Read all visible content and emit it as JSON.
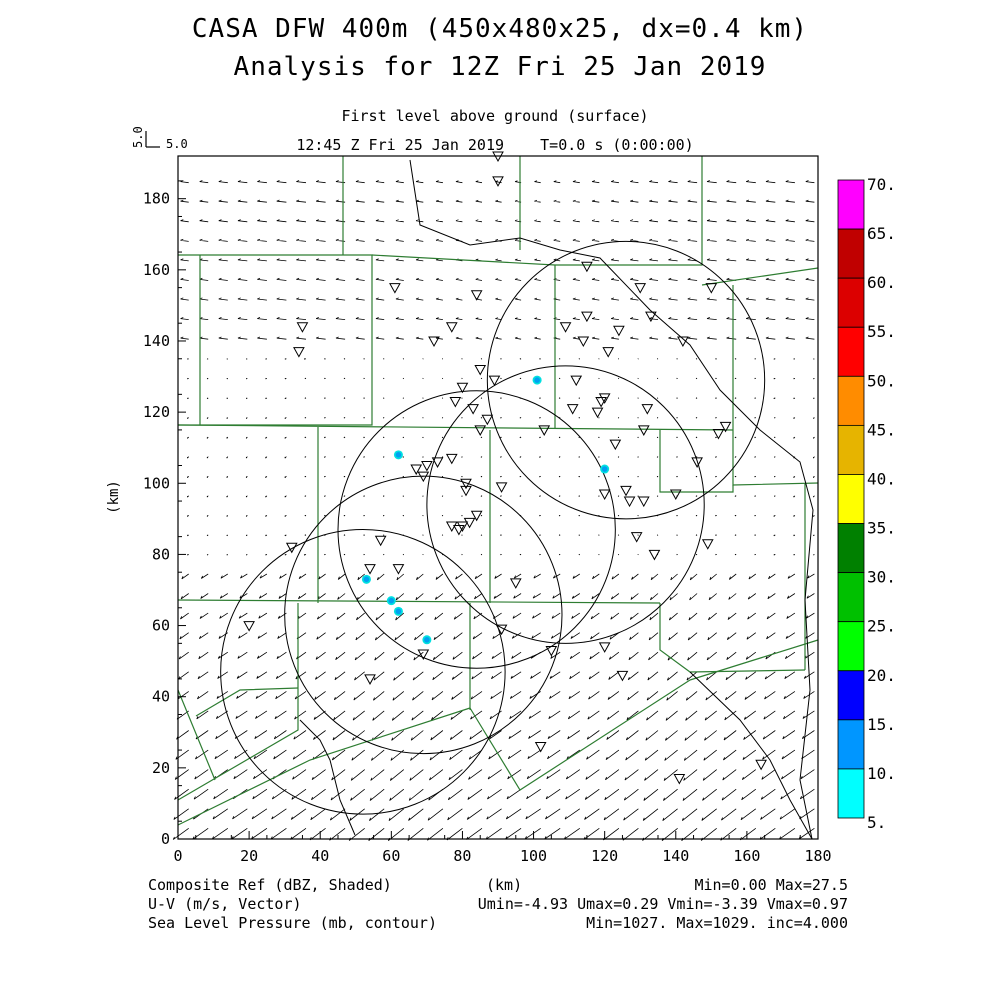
{
  "titles": {
    "line1": "CASA DFW 400m (450x480x25, dx=0.4 km)",
    "line2": "Analysis for 12Z Fri 25 Jan 2019",
    "level": "First level above ground (surface)",
    "time": "12:45 Z Fri 25 Jan 2019    T=0.0 s (0:00:00)"
  },
  "vector_key": {
    "x_label": "5.0",
    "y_label": "5.0"
  },
  "footer": {
    "field1": "Composite Ref (dBZ, Shaded)",
    "field2": "U-V (m/s, Vector)",
    "field3": "Sea Level Pressure (mb, contour)",
    "xunit": "(km)",
    "stats1": "Min=0.00 Max=27.5",
    "stats2": "Umin=-4.93 Umax=0.29 Vmin=-3.39 Vmax=0.97",
    "stats3": "Min=1027. Max=1029. inc=4.000"
  },
  "colors": {
    "boundary": "#2e7d32",
    "outline": "#000000",
    "echo_core": "#00a0f0",
    "echo_edge": "#00e0e0"
  },
  "chart_data": {
    "type": "map",
    "ylabel": "(km)",
    "xlim": [
      0,
      180
    ],
    "ylim": [
      0,
      192
    ],
    "xticks": [
      0,
      20,
      40,
      60,
      80,
      100,
      120,
      140,
      160,
      180
    ],
    "yticks": [
      0,
      20,
      40,
      60,
      80,
      100,
      120,
      140,
      160,
      180
    ],
    "colorbar": {
      "levels": [
        "70.",
        "65.",
        "60.",
        "55.",
        "50.",
        "45.",
        "40.",
        "35.",
        "30.",
        "25.",
        "20.",
        "15.",
        "10.",
        "5."
      ],
      "colors": [
        "#ff00ff",
        "#c00000",
        "#dc0000",
        "#ff0000",
        "#ff8c00",
        "#e6b400",
        "#ffff00",
        "#008000",
        "#00c000",
        "#00ff00",
        "#0000ff",
        "#0096ff",
        "#00ffff"
      ]
    },
    "radar_rings": [
      {
        "cx": 109,
        "cy": 94,
        "r": 39
      },
      {
        "cx": 84,
        "cy": 87,
        "r": 39
      },
      {
        "cx": 52,
        "cy": 47,
        "r": 40
      },
      {
        "cx": 69,
        "cy": 63,
        "r": 39
      },
      {
        "cx": 126,
        "cy": 129,
        "r": 39
      }
    ],
    "echoes": [
      [
        62,
        108
      ],
      [
        101,
        129
      ],
      [
        120,
        104
      ],
      [
        53,
        73
      ],
      [
        60,
        67
      ],
      [
        62,
        64
      ],
      [
        70,
        56
      ]
    ],
    "stations": [
      [
        90,
        192
      ],
      [
        90,
        185
      ],
      [
        61,
        155
      ],
      [
        84,
        153
      ],
      [
        130,
        155
      ],
      [
        115,
        161
      ],
      [
        150,
        155
      ],
      [
        35,
        144
      ],
      [
        34,
        137
      ],
      [
        77,
        144
      ],
      [
        72,
        140
      ],
      [
        109,
        144
      ],
      [
        115,
        147
      ],
      [
        124,
        143
      ],
      [
        133,
        147
      ],
      [
        142,
        140
      ],
      [
        114,
        140
      ],
      [
        121,
        137
      ],
      [
        85,
        132
      ],
      [
        80,
        127
      ],
      [
        89,
        129
      ],
      [
        112,
        129
      ],
      [
        78,
        123
      ],
      [
        111,
        121
      ],
      [
        118,
        120
      ],
      [
        119,
        123
      ],
      [
        120,
        124
      ],
      [
        132,
        121
      ],
      [
        83,
        121
      ],
      [
        87,
        118
      ],
      [
        85,
        115
      ],
      [
        103,
        115
      ],
      [
        123,
        111
      ],
      [
        131,
        115
      ],
      [
        152,
        114
      ],
      [
        154,
        116
      ],
      [
        146,
        106
      ],
      [
        67,
        104
      ],
      [
        69,
        102
      ],
      [
        70,
        105
      ],
      [
        73,
        106
      ],
      [
        77,
        107
      ],
      [
        81,
        98
      ],
      [
        81,
        100
      ],
      [
        91,
        99
      ],
      [
        120,
        97
      ],
      [
        126,
        98
      ],
      [
        127,
        95
      ],
      [
        131,
        95
      ],
      [
        140,
        97
      ],
      [
        77,
        88
      ],
      [
        79,
        87
      ],
      [
        80,
        88
      ],
      [
        82,
        89
      ],
      [
        84,
        91
      ],
      [
        129,
        85
      ],
      [
        134,
        80
      ],
      [
        149,
        83
      ],
      [
        57,
        84
      ],
      [
        32,
        82
      ],
      [
        54,
        76
      ],
      [
        62,
        76
      ],
      [
        95,
        72
      ],
      [
        20,
        60
      ],
      [
        91,
        59
      ],
      [
        105,
        53
      ],
      [
        120,
        54
      ],
      [
        69,
        52
      ],
      [
        125,
        46
      ],
      [
        54,
        45
      ],
      [
        102,
        26
      ],
      [
        164,
        21
      ],
      [
        141,
        17
      ]
    ],
    "annotations": []
  }
}
